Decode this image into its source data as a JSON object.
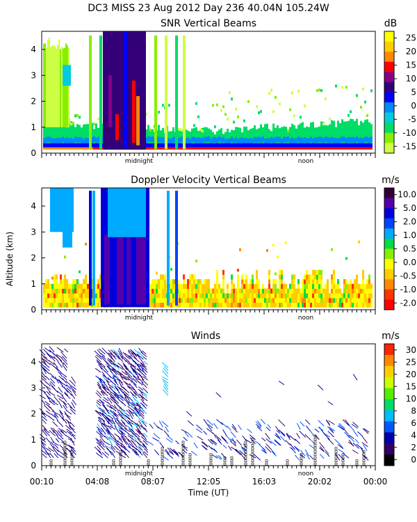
{
  "header": {
    "title": "DC3 MISS  23 Aug 2012 Day 236 40.04N 105.24W"
  },
  "chart_data": [
    {
      "type": "heatmap",
      "title": "SNR Vertical Beams",
      "ylim": [
        0,
        4.7
      ],
      "yticks": [
        0,
        1,
        2,
        3,
        4
      ],
      "colorbar": {
        "unit": "dB",
        "labels": [
          "25",
          "20",
          "15",
          "10",
          "5",
          "0",
          "-5",
          "-10",
          "-15"
        ],
        "colors": [
          "#ffff00",
          "#ffcc00",
          "#ff8800",
          "#ff0000",
          "#880088",
          "#33007a",
          "#0000ff",
          "#0088ff",
          "#00ccdd",
          "#00dd66",
          "#88ee00",
          "#ccff44"
        ]
      },
      "xmarks": [
        "midnight",
        "noon"
      ]
    },
    {
      "type": "heatmap",
      "title": "Doppler Velocity Vertical Beams",
      "ylabel": "Altitude (km)",
      "ylim": [
        0,
        4.7
      ],
      "yticks": [
        0,
        1,
        2,
        3,
        4
      ],
      "colorbar": {
        "unit": "m/s",
        "labels": [
          "10.0",
          "5.0",
          "2.0",
          "1.0",
          "0.5",
          "0.0",
          "-0.5",
          "-1.0",
          "-2.0"
        ],
        "colors": [
          "#330033",
          "#5500aa",
          "#0000dd",
          "#0044ff",
          "#00aaff",
          "#00dd44",
          "#88ee00",
          "#ffff00",
          "#ffcc00",
          "#ff8800",
          "#ff3300",
          "#ff0000"
        ]
      },
      "xmarks": [
        "midnight",
        "noon"
      ]
    },
    {
      "type": "scatter",
      "title": "Winds",
      "ylim": [
        0,
        4.7
      ],
      "yticks": [
        0,
        1,
        2,
        3,
        4
      ],
      "xlabel": "Time (UT)",
      "xticklabels": [
        "00:10",
        "04:08",
        "08:07",
        "12:05",
        "16:03",
        "20:02",
        "00:00"
      ],
      "colorbar": {
        "unit": "m/s",
        "labels": [
          "30",
          "25",
          "20",
          "15",
          "10",
          "8",
          "6",
          "4",
          "2",
          "0"
        ],
        "colors": [
          "#ff2200",
          "#ff8800",
          "#ffcc00",
          "#ccff00",
          "#55ee00",
          "#00dd66",
          "#00bbff",
          "#0055ff",
          "#0000aa",
          "#330066",
          "#000000"
        ]
      },
      "xmarks": [
        "midnight",
        "noon"
      ]
    }
  ]
}
